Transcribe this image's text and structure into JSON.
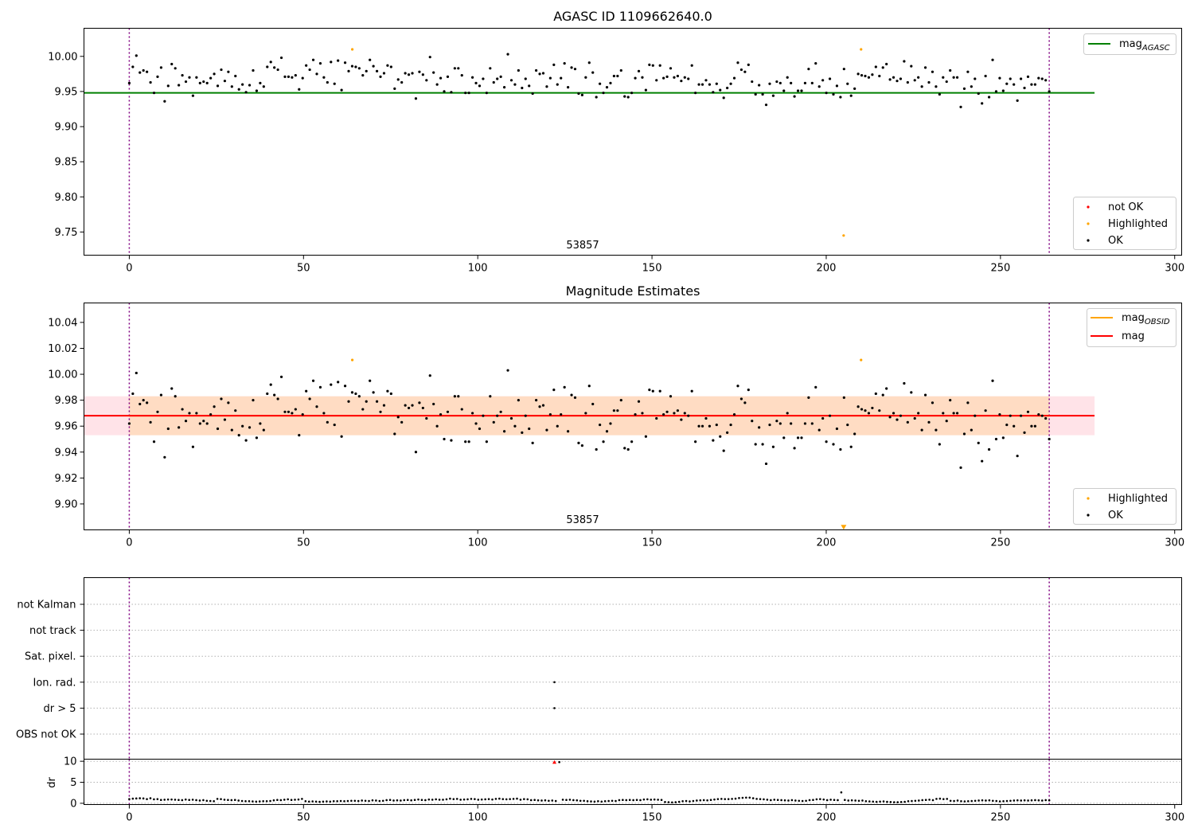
{
  "colors": {
    "ok": "#000000",
    "highlighted": "#ffa500",
    "not_ok": "#ff0000",
    "mag_agasc": "#008000",
    "mag": "#ff0000",
    "mag_obsid": "#ffa500",
    "band_outer": "#ffc0cb",
    "band_inner": "#ffdab9",
    "obs_boundary": "#800080",
    "grid": "#b0b0b0"
  },
  "x_ticks": [
    "0",
    "50",
    "100",
    "150",
    "200",
    "250",
    "300"
  ],
  "panel1": {
    "title": "AGASC ID 1109662640.0",
    "obsid_label": "53857",
    "y_ticks": [
      "10.00",
      "9.95",
      "9.90",
      "9.85",
      "9.80",
      "9.75"
    ],
    "legend_upper": {
      "mag_main": "mag",
      "mag_sub": "AGASC"
    },
    "legend_lower": [
      "not OK",
      "Highlighted",
      "OK"
    ]
  },
  "panel2": {
    "title": "Magnitude Estimates",
    "obsid_label": "53857",
    "y_ticks": [
      "10.04",
      "10.02",
      "10.00",
      "9.98",
      "9.96",
      "9.94",
      "9.92",
      "9.90"
    ],
    "legend_upper": {
      "mag_obsid_main": "mag",
      "mag_obsid_sub": "OBSID",
      "mag": "mag"
    },
    "legend_lower": [
      "Highlighted",
      "OK"
    ]
  },
  "panel3": {
    "flag_labels": [
      "not Kalman",
      "not track",
      "Sat. pixel.",
      "Ion. rad.",
      "dr > 5",
      "OBS not OK"
    ],
    "dr_ylabel": "dr",
    "dr_y_ticks": [
      "10",
      "5",
      "0"
    ]
  },
  "chart_data": [
    {
      "type": "scatter",
      "title": "AGASC ID 1109662640.0",
      "xlim": [
        -13,
        302
      ],
      "ylim": [
        9.717,
        10.04
      ],
      "x_ticks": [
        0,
        50,
        100,
        150,
        200,
        250,
        300
      ],
      "y_ticks": [
        10.0,
        9.95,
        9.9,
        9.85,
        9.8,
        9.75
      ],
      "annotation": {
        "text": "53857",
        "x": 132
      },
      "obs_boundaries": [
        0,
        264
      ],
      "mag_agasc": 9.948,
      "mag_agasc_x_range": [
        -13,
        277
      ],
      "series": [
        {
          "name": "not OK",
          "x": [],
          "y": []
        },
        {
          "name": "Highlighted",
          "x": [
            64,
            205,
            210
          ],
          "y": [
            10.01,
            9.745,
            10.01
          ]
        },
        {
          "name": "OK",
          "x_range": [
            0,
            264
          ],
          "y": [
            9.962,
            9.985,
            10.001,
            9.977,
            9.98,
            9.978,
            9.963,
            9.948,
            9.971,
            9.984,
            9.936,
            9.958,
            9.989,
            9.983,
            9.959,
            9.973,
            9.964,
            9.97,
            9.944,
            9.97,
            9.962,
            9.964,
            9.962,
            9.969,
            9.975,
            9.958,
            9.981,
            9.965,
            9.978,
            9.957,
            9.972,
            9.953,
            9.96,
            9.949,
            9.959,
            9.98,
            9.951,
            9.962,
            9.957,
            9.985,
            9.992,
            9.984,
            9.981,
            9.998,
            9.971,
            9.971,
            9.97,
            9.973,
            9.953,
            9.969,
            9.987,
            9.981,
            9.995,
            9.975,
            9.99,
            9.97,
            9.963,
            9.992,
            9.961,
            9.994,
            9.952,
            9.991,
            9.979,
            9.986,
            9.985,
            9.983,
            9.973,
            9.979,
            9.995,
            9.986,
            9.979,
            9.971,
            9.976,
            9.987,
            9.985,
            9.954,
            9.967,
            9.963,
            9.976,
            9.974,
            9.976,
            9.94,
            9.978,
            9.974,
            9.966,
            9.999,
            9.977,
            9.96,
            9.969,
            9.95,
            9.971,
            9.949,
            9.983,
            9.983,
            9.973,
            9.948,
            9.948,
            9.97,
            9.962,
            9.958,
            9.968,
            9.948,
            9.983,
            9.963,
            9.968,
            9.971,
            9.956,
            10.003,
            9.966,
            9.96,
            9.98,
            9.955,
            9.968,
            9.958,
            9.947,
            9.98,
            9.975,
            9.976,
            9.957,
            9.969,
            9.988,
            9.96,
            9.969,
            9.99,
            9.956,
            9.984,
            9.982,
            9.947,
            9.945,
            9.97,
            9.991,
            9.977,
            9.942,
            9.961,
            9.948,
            9.956,
            9.962,
            9.972,
            9.972,
            9.98,
            9.943,
            9.942,
            9.948,
            9.969,
            9.979,
            9.97,
            9.952,
            9.988,
            9.987,
            9.966,
            9.987,
            9.969,
            9.971,
            9.983,
            9.97,
            9.972,
            9.965,
            9.97,
            9.968,
            9.987,
            9.948,
            9.96,
            9.96,
            9.966,
            9.96,
            9.949,
            9.961,
            9.952,
            9.941,
            9.955,
            9.961,
            9.969,
            9.991,
            9.981,
            9.978,
            9.988,
            9.964,
            9.946,
            9.959,
            9.946,
            9.931,
            9.961,
            9.944,
            9.964,
            9.962,
            9.951,
            9.97,
            9.962,
            9.943,
            9.951,
            9.951,
            9.962,
            9.982,
            9.962,
            9.99,
            9.957,
            9.966,
            9.948,
            9.968,
            9.946,
            9.958,
            9.942,
            9.982,
            9.961,
            9.944,
            9.954,
            9.975,
            9.973,
            9.972,
            9.97,
            9.974,
            9.985,
            9.972,
            9.984,
            9.989,
            9.967,
            9.97,
            9.965,
            9.968,
            9.993,
            9.963,
            9.986,
            9.966,
            9.97,
            9.957,
            9.984,
            9.963,
            9.978,
            9.957,
            9.946,
            9.97,
            9.964,
            9.98,
            9.97,
            9.97,
            9.928,
            9.954,
            9.978,
            9.957,
            9.968,
            9.947,
            9.933,
            9.972,
            9.942,
            9.995,
            9.95,
            9.969,
            9.951,
            9.961,
            9.968,
            9.96,
            9.937,
            9.968,
            9.955,
            9.971,
            9.96,
            9.96,
            9.969,
            9.968,
            9.966,
            9.95
          ]
        }
      ],
      "legend": {
        "upper": "top-right",
        "lower": "bottom-right"
      }
    },
    {
      "type": "scatter",
      "title": "Magnitude Estimates",
      "xlim": [
        -13,
        302
      ],
      "ylim": [
        9.88,
        10.055
      ],
      "x_ticks": [
        0,
        50,
        100,
        150,
        200,
        250,
        300
      ],
      "y_ticks": [
        10.04,
        10.02,
        10.0,
        9.98,
        9.96,
        9.94,
        9.92,
        9.9
      ],
      "annotation": {
        "text": "53857",
        "x": 132
      },
      "obs_boundaries": [
        0,
        264
      ],
      "mag": 9.968,
      "mag_obsid": 9.968,
      "mag_x_range": [
        -13,
        277
      ],
      "band_outer": [
        9.953,
        9.983
      ],
      "band_inner": [
        9.953,
        9.983
      ],
      "band_inner_x_range": [
        0,
        264
      ],
      "series": [
        {
          "name": "Highlighted",
          "x": [
            64,
            205,
            210
          ],
          "y": [
            10.011,
            9.882,
            10.011
          ],
          "markers": [
            "point",
            "down-triangle",
            "point"
          ]
        },
        {
          "name": "OK",
          "same_as_panel": 1
        }
      ],
      "legend": {
        "upper": "top-right",
        "lower": "bottom-right"
      }
    },
    {
      "type": "scatter",
      "flags": {
        "categories": [
          "not Kalman",
          "not track",
          "Sat. pixel.",
          "Ion. rad.",
          "dr > 5",
          "OBS not OK"
        ],
        "points": [
          {
            "flag": "Ion. rad.",
            "x": 122
          },
          {
            "flag": "dr > 5",
            "x": 122
          }
        ]
      },
      "dr": {
        "ylabel": "dr",
        "ylim": [
          -0.3,
          10.5
        ],
        "y_ticks": [
          0,
          5,
          10
        ],
        "x_range": [
          0,
          264
        ],
        "values": [
          1.0,
          1.1,
          1.15,
          1.2,
          1.15,
          1.0,
          1.2,
          0.95,
          1.0,
          0.8,
          0.85,
          0.9,
          0.9,
          0.85,
          0.8,
          0.75,
          0.9,
          0.8,
          0.85,
          0.75,
          0.65,
          0.75,
          0.6,
          0.55,
          0.5,
          1.05,
          1.0,
          0.85,
          0.8,
          0.75,
          0.8,
          0.65,
          0.55,
          0.5,
          0.5,
          0.45,
          0.4,
          0.45,
          0.5,
          0.5,
          0.55,
          0.7,
          0.8,
          0.75,
          0.85,
          0.95,
          0.8,
          0.85,
          0.9,
          1.05,
          0.5,
          0.4,
          0.45,
          0.4,
          0.35,
          0.4,
          0.45,
          0.4,
          0.5,
          0.5,
          0.55,
          0.5,
          0.55,
          0.6,
          0.6,
          0.55,
          0.65,
          0.6,
          0.55,
          0.7,
          0.65,
          0.55,
          0.6,
          0.75,
          0.8,
          0.65,
          0.7,
          0.65,
          0.75,
          0.8,
          0.7,
          0.8,
          0.9,
          0.8,
          0.75,
          0.9,
          0.85,
          0.95,
          0.85,
          0.85,
          0.95,
          1.1,
          1.0,
          1.05,
          0.85,
          0.9,
          0.95,
          1.05,
          1.0,
          0.85,
          0.9,
          0.95,
          1.0,
          0.9,
          1.05,
          1.1,
          1.0,
          0.95,
          1.0,
          1.05,
          1.1,
          0.85,
          1.0,
          0.95,
          0.75,
          0.8,
          0.7,
          0.65,
          0.7,
          0.6,
          0.65,
          0.55,
          9.8,
          0.85,
          0.8,
          0.85,
          0.75,
          0.7,
          0.6,
          0.6,
          0.5,
          0.45,
          0.4,
          0.5,
          0.4,
          0.5,
          0.55,
          0.6,
          0.55,
          0.75,
          0.8,
          0.75,
          0.8,
          0.75,
          0.8,
          0.75,
          0.9,
          0.95,
          0.85,
          0.9,
          0.85,
          0.8,
          0.3,
          0.25,
          0.2,
          0.25,
          0.35,
          0.5,
          0.55,
          0.45,
          0.55,
          0.65,
          0.7,
          0.75,
          0.7,
          0.8,
          0.9,
          1.0,
          1.05,
          1.0,
          1.0,
          1.05,
          1.1,
          1.25,
          1.3,
          1.35,
          1.35,
          1.2,
          1.05,
          1.0,
          0.95,
          0.85,
          0.75,
          0.85,
          0.8,
          0.75,
          0.7,
          0.65,
          0.75,
          0.65,
          0.6,
          0.55,
          0.6,
          0.75,
          0.8,
          0.95,
          1.0,
          0.9,
          0.75,
          0.85,
          0.8,
          0.75,
          2.6,
          0.8,
          0.65,
          0.7,
          0.65,
          0.6,
          0.65,
          0.5,
          0.45,
          0.4,
          0.35,
          0.4,
          0.45,
          0.35,
          0.3,
          0.25,
          0.25,
          0.3,
          0.35,
          0.5,
          0.55,
          0.6,
          0.65,
          0.75,
          0.8,
          0.85,
          0.75,
          1.05,
          1.1,
          1.0,
          1.05,
          0.6,
          0.55,
          0.65,
          0.5,
          0.45,
          0.5,
          0.55,
          0.6,
          0.65,
          0.7,
          0.65,
          0.7,
          0.6,
          0.55,
          0.45,
          0.5,
          0.55,
          0.6,
          0.65,
          0.7,
          0.65,
          0.7,
          0.65,
          0.7,
          0.75,
          0.7,
          0.65,
          0.75,
          0.7
        ]
      },
      "highlighted_dr": {
        "x": [
          122
        ],
        "y": [
          9.8
        ],
        "color": "not_ok"
      },
      "obs_boundaries": [
        0,
        264
      ]
    }
  ]
}
